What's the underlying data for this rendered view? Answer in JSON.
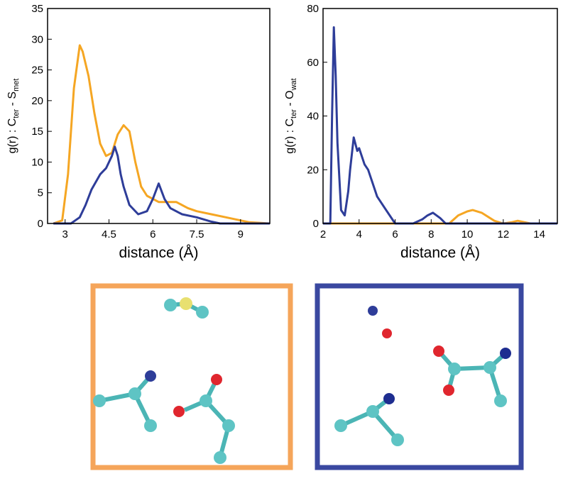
{
  "chart_data": [
    {
      "type": "line",
      "xlabel": "distance (Å)",
      "ylabel": [
        "g(r) : C",
        "ter",
        " - S",
        "met"
      ],
      "xlim": [
        2.4,
        10
      ],
      "ylim": [
        0,
        35
      ],
      "xticks": [
        3,
        4.5,
        6,
        7.5,
        9
      ],
      "yticks": [
        0,
        5,
        10,
        15,
        20,
        25,
        30,
        35
      ],
      "series": [
        {
          "color": "#f5a623",
          "x": [
            2.6,
            2.9,
            3.1,
            3.3,
            3.5,
            3.6,
            3.8,
            4.0,
            4.2,
            4.4,
            4.6,
            4.8,
            5.0,
            5.2,
            5.4,
            5.6,
            5.8,
            6.2,
            6.8,
            7.2,
            7.5,
            8.0,
            8.5,
            9.0,
            9.3,
            10.0
          ],
          "values": [
            0,
            0.5,
            8,
            22,
            29,
            28,
            24,
            18,
            13,
            11,
            11.5,
            14.5,
            16,
            15,
            10,
            6,
            4.5,
            3.5,
            3.5,
            2.5,
            2,
            1.5,
            1,
            0.5,
            0.2,
            0
          ]
        },
        {
          "color": "#2e3d99",
          "x": [
            2.6,
            3.2,
            3.5,
            3.7,
            3.9,
            4.2,
            4.4,
            4.6,
            4.7,
            4.8,
            4.9,
            5.0,
            5.2,
            5.5,
            5.8,
            6.0,
            6.2,
            6.4,
            6.6,
            7.0,
            7.5,
            8.0,
            8.3,
            10.0
          ],
          "values": [
            0,
            0,
            1,
            3,
            5.5,
            8,
            9,
            11,
            12.5,
            11,
            8,
            6,
            3,
            1.5,
            2,
            4,
            6.5,
            4,
            2.5,
            1.5,
            1,
            0.3,
            0,
            0
          ]
        }
      ]
    },
    {
      "type": "line",
      "xlabel": "distance (Å)",
      "ylabel": [
        "g(r) : C",
        "ter",
        " - O",
        "wat"
      ],
      "xlim": [
        2,
        15
      ],
      "ylim": [
        0,
        80
      ],
      "xticks": [
        2,
        4,
        6,
        8,
        10,
        12,
        14
      ],
      "yticks": [
        0,
        20,
        40,
        60,
        80
      ],
      "series": [
        {
          "color": "#f5a623",
          "x": [
            2,
            9.0,
            9.5,
            10.0,
            10.3,
            10.8,
            11.5,
            12.0,
            12.5,
            12.8,
            13.5,
            15
          ],
          "values": [
            0,
            0,
            3,
            4.5,
            5,
            4,
            1,
            0,
            0.5,
            1,
            0,
            0
          ]
        },
        {
          "color": "#2e3d99",
          "x": [
            2,
            2.4,
            2.5,
            2.6,
            2.7,
            2.8,
            3.0,
            3.2,
            3.4,
            3.5,
            3.7,
            3.9,
            4.0,
            4.3,
            4.5,
            5.0,
            5.5,
            6.0,
            7.0,
            7.5,
            7.8,
            8.1,
            8.5,
            8.8,
            15
          ],
          "values": [
            0,
            0,
            40,
            73,
            55,
            30,
            5,
            3,
            12,
            20,
            32,
            27,
            28,
            22,
            20,
            10,
            5,
            0,
            0,
            1.5,
            3,
            4,
            2,
            0,
            0
          ]
        }
      ]
    }
  ]
}
